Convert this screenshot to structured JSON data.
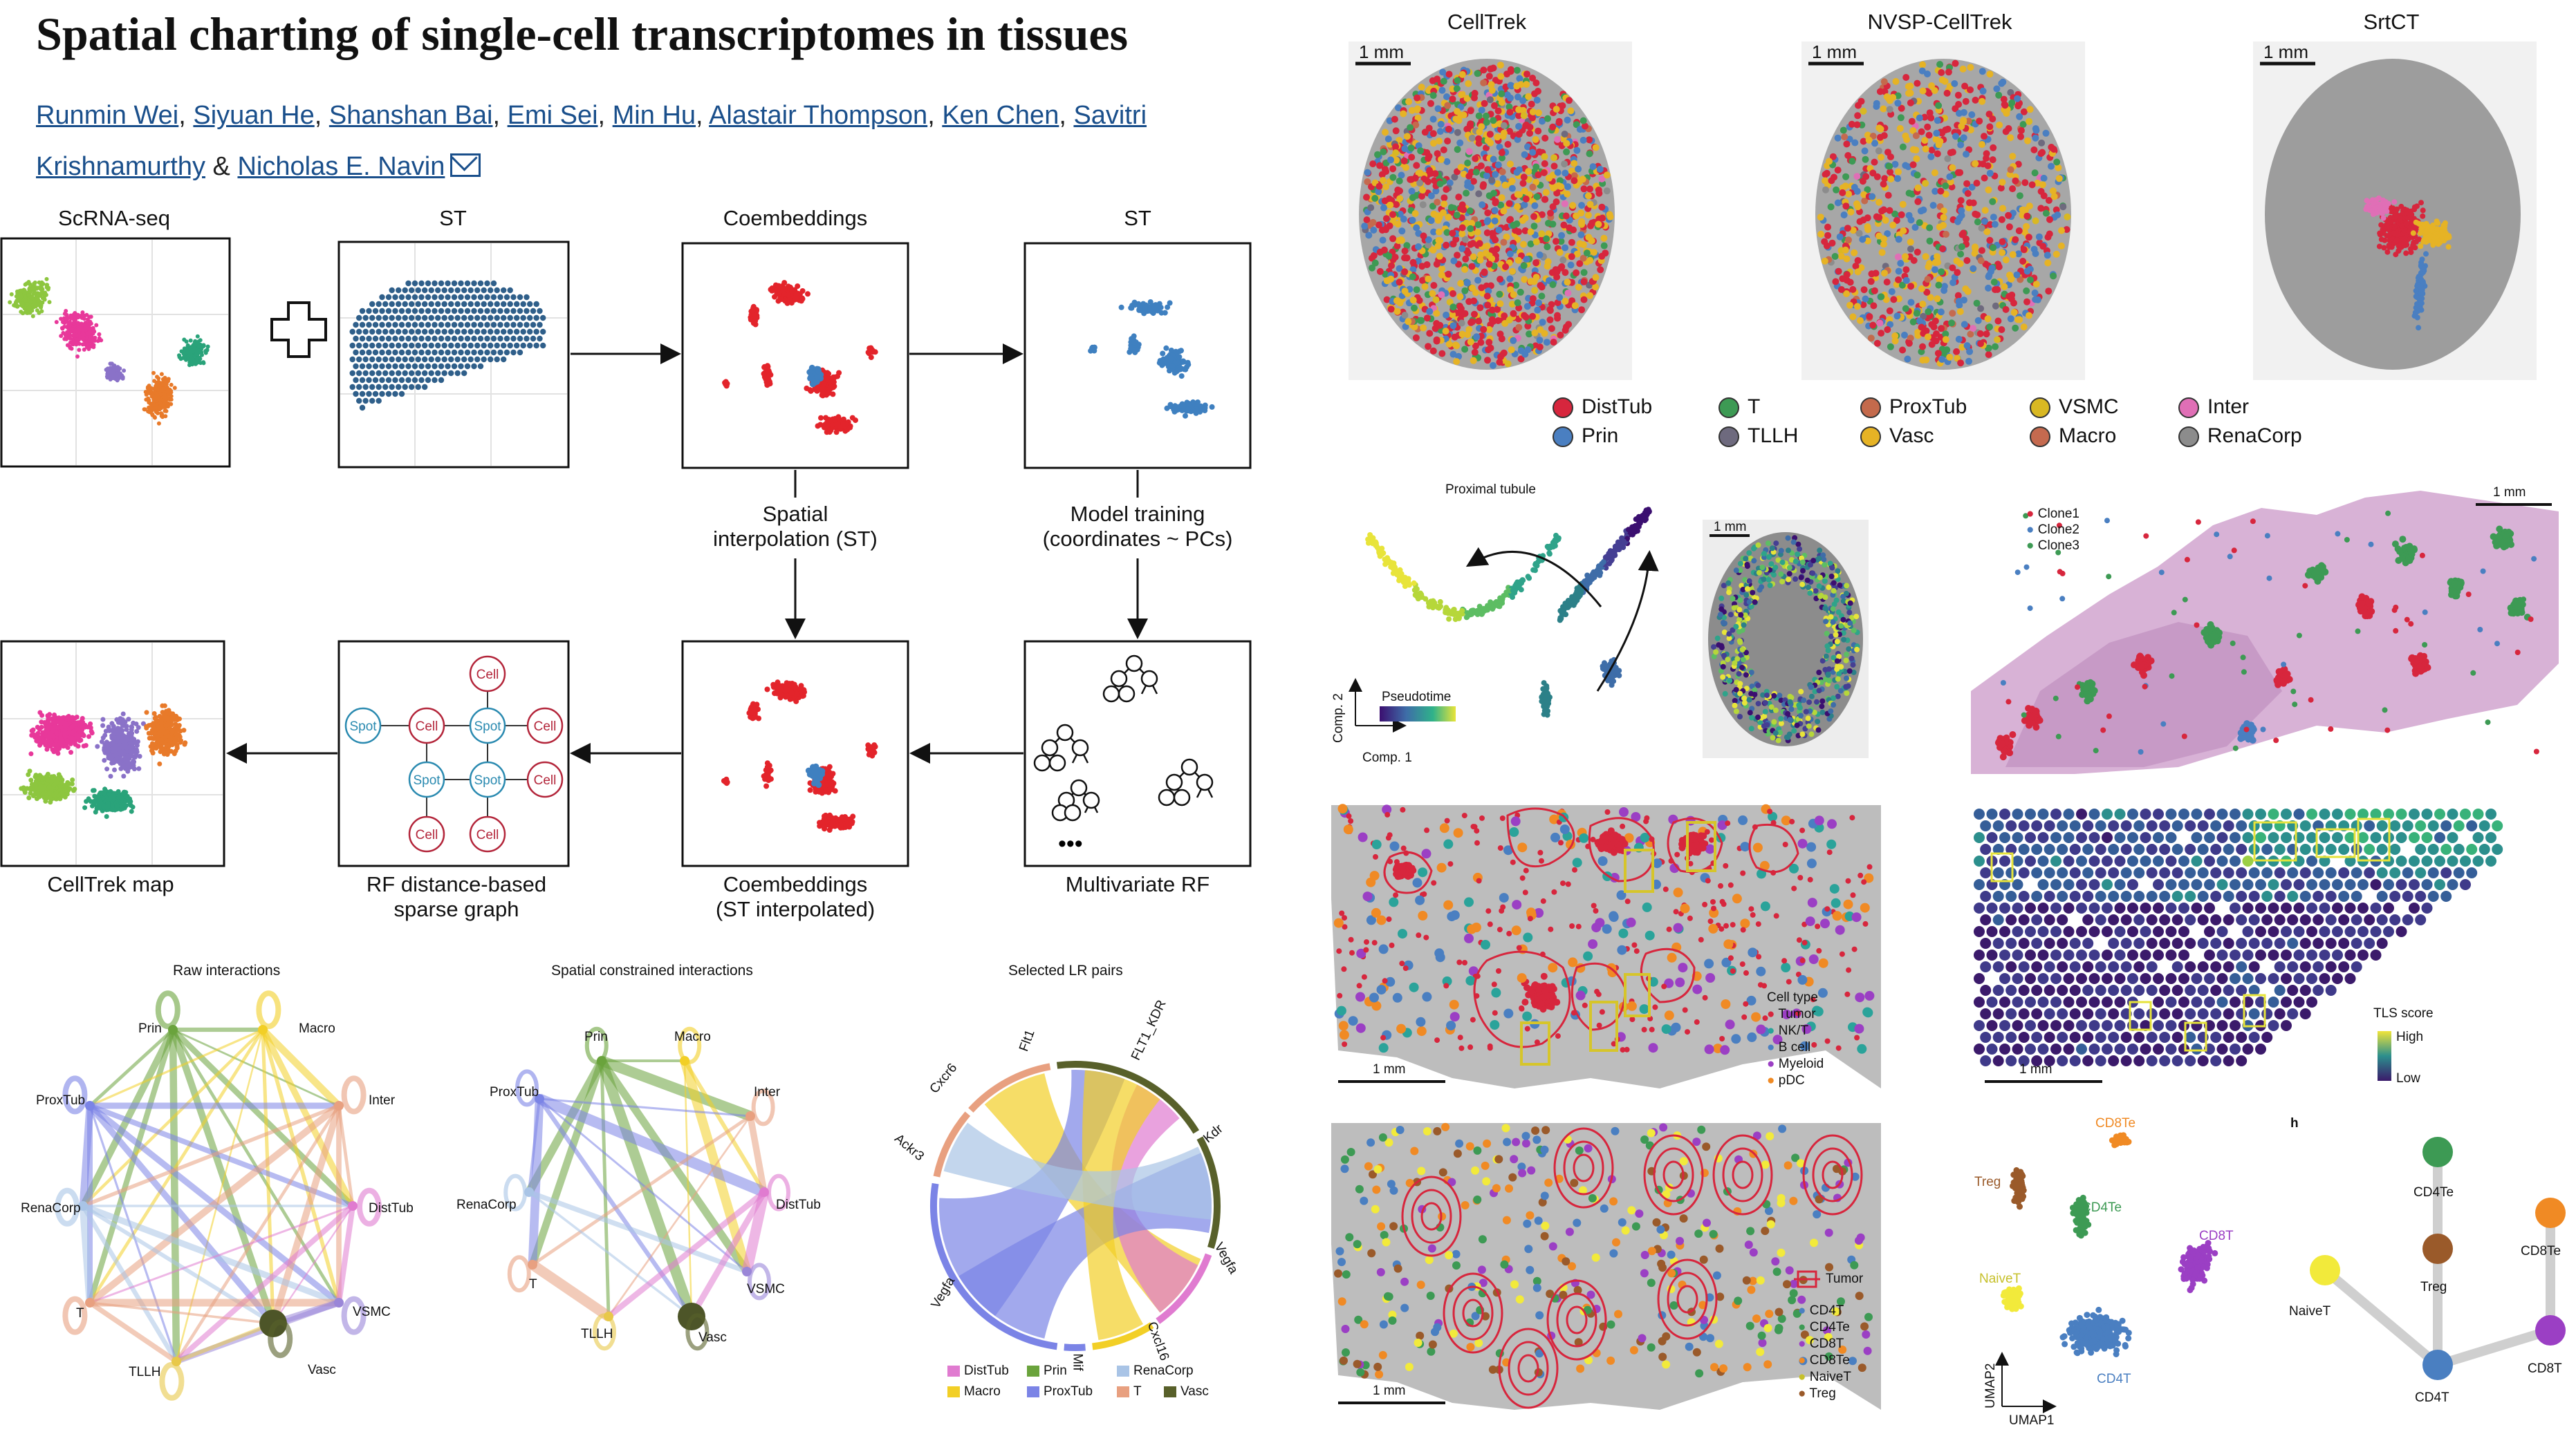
{
  "header": {
    "title": "Spatial charting of single-cell transcriptomes in tissues",
    "authors": [
      "Runmin Wei",
      "Siyuan He",
      "Shanshan Bai",
      "Emi Sei",
      "Min Hu",
      "Alastair Thompson",
      "Ken Chen",
      "Savitri Krishnamurthy",
      "Nicholas E. Navin"
    ],
    "authors_separator": "&"
  },
  "workflow": {
    "scrna_label": "ScRNA-seq",
    "st_label": "ST",
    "coembed_label": "Coembeddings",
    "st2_label": "ST",
    "spatial_interp_1": "Spatial",
    "spatial_interp_2": "interpolation (ST)",
    "model_training_1": "Model training",
    "model_training_2": "(coordinates ~ PCs)",
    "celltrek_map": "CellTrek map",
    "rf_graph_1": "RF distance-based",
    "rf_graph_2": "sparse graph",
    "coembed_interp_1": "Coembeddings",
    "coembed_interp_2": "(ST interpolated)",
    "multivariate_rf": "Multivariate RF",
    "spot": "Spot",
    "cell": "Cell",
    "dots": "•••"
  },
  "methods": {
    "panels": [
      "CellTrek",
      "NVSP-CellTrek",
      "SrtCT"
    ],
    "scale": "1 mm",
    "legend": [
      {
        "name": "DistTub",
        "color": "#d7263d"
      },
      {
        "name": "Prin",
        "color": "#4a7fc1"
      },
      {
        "name": "T",
        "color": "#3d9a54"
      },
      {
        "name": "TLLH",
        "color": "#6e6a7e"
      },
      {
        "name": "ProxTub",
        "color": "#c46a4c"
      },
      {
        "name": "Vasc",
        "color": "#e6b325"
      },
      {
        "name": "VSMC",
        "color": "#d9b823"
      },
      {
        "name": "Macro",
        "color": "#c56a4f"
      },
      {
        "name": "Inter",
        "color": "#e06fb6"
      },
      {
        "name": "RenaCorp",
        "color": "#8c8c8c"
      }
    ]
  },
  "pseudotime": {
    "title": "Proximal tubule",
    "legend": "Pseudotime",
    "comp1": "Comp. 1",
    "comp2": "Comp. 2",
    "scale": "1 mm"
  },
  "clones": {
    "items": [
      "Clone1",
      "Clone2",
      "Clone3"
    ],
    "colors": [
      "#d7263d",
      "#4a7fc1",
      "#3d9a54"
    ],
    "scale": "1 mm"
  },
  "celltype": {
    "title": "Cell type",
    "items": [
      "Tumor",
      "NK/T",
      "B cell",
      "Myeloid",
      "pDC"
    ],
    "colors": [
      "#d7263d",
      "#2aa39a",
      "#4a7fc1",
      "#9b3fc4",
      "#f08a24"
    ],
    "scale": "1 mm"
  },
  "tls": {
    "title": "TLS score",
    "high": "High",
    "low": "Low",
    "scale": "1 mm"
  },
  "tcells": {
    "tumor": "Tumor",
    "items": [
      "CD4T",
      "CD4Te",
      "CD8T",
      "CD8Te",
      "NaiveT",
      "Treg"
    ],
    "colors": [
      "#4a7fc1",
      "#3d9a54",
      "#9b3fc4",
      "#f08a24",
      "#f2ea3b",
      "#9a5a2a"
    ],
    "scale": "1 mm"
  },
  "umap": {
    "labels": [
      "CD8Te",
      "Treg",
      "CD4Te",
      "CD8T",
      "NaiveT",
      "CD4T"
    ],
    "umap1": "UMAP1",
    "umap2": "UMAP2"
  },
  "tree": {
    "panel": "h",
    "nodes": [
      "CD4Te",
      "Treg",
      "NaiveT",
      "CD4T",
      "CD8Te",
      "CD8T"
    ]
  },
  "networks": {
    "titles": [
      "Raw interactions",
      "Spatial constrained interactions",
      "Selected LR pairs"
    ],
    "raw_nodes": [
      "Prin",
      "Macro",
      "ProxTub",
      "Inter",
      "RenaCorp",
      "DistTub",
      "T",
      "VSMC",
      "TLLH",
      "Vasc"
    ],
    "sc_nodes": [
      "Prin",
      "Macro",
      "ProxTub",
      "Inter",
      "RenaCorp",
      "DistTub",
      "T",
      "VSMC",
      "TLLH",
      "Vasc"
    ],
    "lr_labels": [
      "Flt1",
      "FLT1_KDR",
      "Kdr",
      "Vegfa",
      "Cxcl16",
      "Mif",
      "Vegfa",
      "Ackr3",
      "Cxcr6"
    ],
    "lr_legend": [
      "DistTub",
      "Prin",
      "RenaCorp",
      "Macro",
      "ProxTub",
      "T",
      "Vasc"
    ],
    "lr_colors": [
      "#e07bd0",
      "#6aa33c",
      "#a9c4e6",
      "#f2cf26",
      "#7b84e6",
      "#e8a080",
      "#58602a"
    ]
  }
}
